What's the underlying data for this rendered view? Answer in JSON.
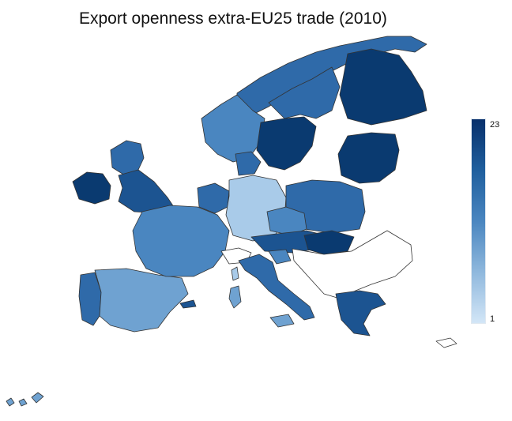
{
  "title": "Export openness extra-EU25 trade (2010)",
  "legend": {
    "max_label": "23",
    "min_label": "1",
    "min_color": "#d3e6f7",
    "max_color": "#08306b"
  },
  "colors": {
    "very_dark": "#0a3a70",
    "dark": "#1c5491",
    "medium_dark": "#2f6aa9",
    "medium": "#4a86c0",
    "medium_light": "#6fa2d1",
    "light": "#a9cbe9",
    "very_light": "#cfe2f5",
    "no_data": "#ffffff",
    "border": "#333333"
  }
}
